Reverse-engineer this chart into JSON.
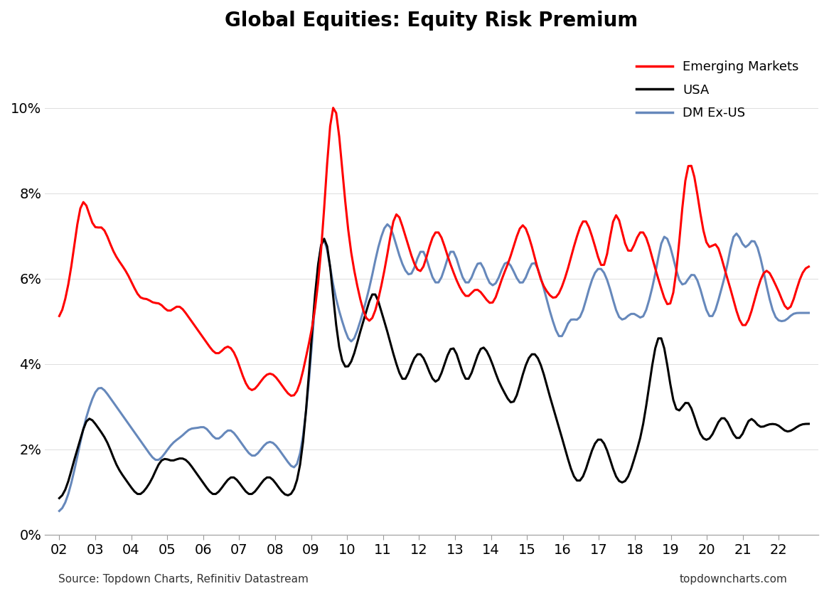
{
  "title": "Global Equities: Equity Risk Premium",
  "source_left": "Source: Topdown Charts, Refinitiv Datastream",
  "source_right": "topdowncharts.com",
  "ylim": [
    0,
    11.5
  ],
  "yticks": [
    0,
    2,
    4,
    6,
    8,
    10
  ],
  "ytick_labels": [
    "0%",
    "2%",
    "4%",
    "6%",
    "8%",
    "10%"
  ],
  "legend": [
    {
      "label": "Emerging Markets",
      "color": "#FF0000"
    },
    {
      "label": "USA",
      "color": "#000000"
    },
    {
      "label": "DM Ex-US",
      "color": "#6688BB"
    }
  ],
  "background_color": "#FFFFFF",
  "em_data": [
    5.0,
    5.2,
    5.5,
    5.8,
    6.2,
    6.8,
    7.3,
    7.9,
    8.0,
    7.8,
    7.5,
    7.2,
    7.1,
    7.2,
    7.3,
    7.2,
    7.0,
    6.8,
    6.6,
    6.5,
    6.4,
    6.3,
    6.2,
    6.1,
    5.9,
    5.8,
    5.6,
    5.5,
    5.5,
    5.6,
    5.5,
    5.4,
    5.4,
    5.5,
    5.4,
    5.3,
    5.2,
    5.2,
    5.3,
    5.4,
    5.4,
    5.3,
    5.2,
    5.1,
    5.0,
    4.9,
    4.8,
    4.7,
    4.6,
    4.5,
    4.4,
    4.3,
    4.2,
    4.2,
    4.3,
    4.4,
    4.5,
    4.4,
    4.3,
    4.2,
    3.9,
    3.7,
    3.5,
    3.4,
    3.3,
    3.4,
    3.5,
    3.6,
    3.7,
    3.8,
    3.8,
    3.8,
    3.7,
    3.6,
    3.5,
    3.4,
    3.3,
    3.2,
    3.2,
    3.3,
    3.5,
    3.8,
    4.2,
    4.5,
    4.8,
    5.2,
    5.8,
    6.5,
    7.5,
    8.8,
    10.0,
    10.5,
    10.2,
    9.5,
    8.5,
    7.8,
    7.0,
    6.5,
    6.2,
    5.8,
    5.5,
    5.2,
    5.0,
    4.9,
    5.0,
    5.2,
    5.5,
    5.8,
    6.2,
    6.5,
    7.0,
    7.5,
    7.8,
    7.5,
    7.2,
    7.0,
    6.8,
    6.5,
    6.3,
    6.2,
    6.0,
    6.2,
    6.5,
    6.8,
    7.0,
    7.2,
    7.2,
    7.0,
    6.8,
    6.5,
    6.3,
    6.2,
    5.9,
    5.8,
    5.7,
    5.5,
    5.5,
    5.7,
    5.8,
    5.8,
    5.7,
    5.6,
    5.5,
    5.4,
    5.3,
    5.5,
    5.8,
    6.0,
    6.2,
    6.3,
    6.5,
    6.8,
    7.0,
    7.2,
    7.5,
    7.2,
    7.0,
    6.8,
    6.5,
    6.2,
    5.9,
    5.8,
    5.7,
    5.6,
    5.5,
    5.5,
    5.6,
    5.8,
    6.0,
    6.2,
    6.5,
    6.8,
    7.0,
    7.2,
    7.5,
    7.5,
    7.2,
    7.0,
    6.8,
    6.5,
    6.2,
    6.0,
    6.5,
    7.0,
    7.5,
    7.8,
    7.5,
    7.0,
    6.8,
    6.5,
    6.5,
    6.8,
    7.0,
    7.2,
    7.2,
    7.0,
    6.8,
    6.5,
    6.2,
    6.0,
    5.8,
    5.5,
    5.3,
    5.2,
    5.5,
    6.0,
    6.8,
    7.8,
    8.5,
    9.0,
    8.8,
    8.5,
    8.0,
    7.5,
    7.0,
    6.8,
    6.5,
    6.8,
    7.0,
    6.8,
    6.5,
    6.2,
    6.0,
    5.8,
    5.5,
    5.2,
    5.0,
    4.8,
    4.8,
    5.0,
    5.2,
    5.5,
    5.8,
    6.0,
    6.2,
    6.3,
    6.2,
    6.0,
    5.8,
    5.8,
    5.5,
    5.3,
    5.2,
    5.2,
    5.5,
    5.8,
    6.0,
    6.2,
    6.3,
    6.3
  ],
  "usa_data": [
    0.8,
    0.9,
    1.0,
    1.2,
    1.5,
    1.8,
    2.0,
    2.2,
    2.5,
    2.8,
    2.8,
    2.7,
    2.6,
    2.5,
    2.4,
    2.3,
    2.2,
    2.0,
    1.8,
    1.6,
    1.5,
    1.4,
    1.3,
    1.2,
    1.1,
    1.0,
    0.9,
    0.9,
    1.0,
    1.1,
    1.2,
    1.3,
    1.5,
    1.7,
    1.8,
    1.8,
    1.8,
    1.7,
    1.7,
    1.8,
    1.8,
    1.8,
    1.8,
    1.7,
    1.6,
    1.5,
    1.4,
    1.3,
    1.2,
    1.1,
    1.0,
    0.9,
    0.9,
    1.0,
    1.1,
    1.2,
    1.3,
    1.4,
    1.4,
    1.3,
    1.2,
    1.1,
    1.0,
    0.9,
    0.9,
    1.0,
    1.1,
    1.2,
    1.3,
    1.4,
    1.4,
    1.3,
    1.2,
    1.1,
    1.0,
    0.9,
    0.9,
    0.9,
    1.0,
    1.2,
    1.5,
    2.0,
    2.8,
    3.8,
    4.8,
    5.8,
    6.5,
    7.0,
    7.2,
    7.0,
    6.5,
    5.5,
    4.8,
    4.2,
    4.0,
    3.8,
    3.9,
    4.0,
    4.2,
    4.5,
    4.8,
    5.0,
    5.2,
    5.5,
    5.8,
    5.8,
    5.5,
    5.2,
    5.0,
    4.8,
    4.5,
    4.2,
    4.0,
    3.8,
    3.5,
    3.5,
    3.8,
    4.0,
    4.2,
    4.3,
    4.3,
    4.2,
    4.0,
    3.8,
    3.6,
    3.5,
    3.5,
    3.8,
    4.0,
    4.2,
    4.5,
    4.5,
    4.3,
    4.0,
    3.8,
    3.5,
    3.5,
    3.8,
    4.0,
    4.2,
    4.5,
    4.5,
    4.3,
    4.2,
    4.0,
    3.8,
    3.5,
    3.5,
    3.3,
    3.2,
    3.0,
    3.0,
    3.2,
    3.5,
    3.8,
    4.0,
    4.2,
    4.3,
    4.3,
    4.2,
    4.0,
    3.8,
    3.5,
    3.2,
    3.0,
    2.8,
    2.5,
    2.3,
    2.0,
    1.8,
    1.5,
    1.3,
    1.2,
    1.2,
    1.3,
    1.5,
    1.8,
    2.0,
    2.2,
    2.3,
    2.3,
    2.2,
    2.0,
    1.8,
    1.5,
    1.3,
    1.2,
    1.2,
    1.2,
    1.3,
    1.5,
    1.8,
    2.0,
    2.2,
    2.5,
    3.0,
    3.5,
    4.0,
    4.5,
    4.8,
    4.8,
    4.5,
    4.0,
    3.5,
    3.0,
    2.8,
    2.8,
    3.0,
    3.2,
    3.2,
    3.0,
    2.8,
    2.5,
    2.3,
    2.2,
    2.2,
    2.2,
    2.3,
    2.5,
    2.7,
    2.8,
    2.8,
    2.7,
    2.5,
    2.3,
    2.2,
    2.2,
    2.3,
    2.5,
    2.8,
    2.8,
    2.7,
    2.5,
    2.5,
    2.5,
    2.6,
    2.6,
    2.6,
    2.6,
    2.6,
    2.5,
    2.4,
    2.4,
    2.4,
    2.5,
    2.5,
    2.6,
    2.6,
    2.6,
    2.6
  ],
  "dm_data": [
    0.5,
    0.6,
    0.7,
    0.9,
    1.2,
    1.5,
    1.8,
    2.2,
    2.5,
    2.8,
    3.0,
    3.2,
    3.4,
    3.5,
    3.5,
    3.4,
    3.3,
    3.2,
    3.1,
    3.0,
    2.9,
    2.8,
    2.7,
    2.6,
    2.5,
    2.4,
    2.3,
    2.2,
    2.1,
    2.0,
    1.9,
    1.8,
    1.7,
    1.7,
    1.8,
    1.9,
    2.0,
    2.1,
    2.2,
    2.2,
    2.3,
    2.3,
    2.4,
    2.5,
    2.5,
    2.5,
    2.5,
    2.5,
    2.6,
    2.5,
    2.4,
    2.3,
    2.2,
    2.2,
    2.3,
    2.4,
    2.5,
    2.5,
    2.4,
    2.3,
    2.2,
    2.1,
    2.0,
    1.9,
    1.8,
    1.8,
    1.9,
    2.0,
    2.1,
    2.2,
    2.2,
    2.2,
    2.1,
    2.0,
    1.9,
    1.8,
    1.7,
    1.6,
    1.5,
    1.5,
    1.8,
    2.2,
    2.8,
    3.5,
    4.5,
    5.5,
    6.5,
    7.2,
    7.2,
    6.8,
    6.2,
    5.8,
    5.5,
    5.2,
    5.0,
    4.8,
    4.5,
    4.4,
    4.5,
    4.8,
    5.0,
    5.2,
    5.5,
    5.8,
    6.0,
    6.5,
    6.8,
    7.0,
    7.2,
    7.5,
    7.3,
    7.0,
    6.8,
    6.5,
    6.3,
    6.2,
    6.0,
    6.0,
    6.2,
    6.5,
    6.8,
    6.8,
    6.5,
    6.2,
    6.0,
    5.8,
    5.8,
    6.0,
    6.2,
    6.5,
    6.8,
    6.8,
    6.5,
    6.2,
    6.0,
    5.8,
    5.8,
    6.0,
    6.2,
    6.5,
    6.5,
    6.3,
    6.0,
    5.8,
    5.8,
    5.8,
    6.0,
    6.2,
    6.5,
    6.5,
    6.3,
    6.2,
    6.0,
    5.8,
    5.8,
    6.0,
    6.2,
    6.5,
    6.5,
    6.3,
    6.0,
    5.8,
    5.5,
    5.2,
    5.0,
    4.8,
    4.5,
    4.5,
    4.8,
    5.0,
    5.2,
    5.0,
    5.0,
    5.0,
    5.2,
    5.5,
    5.8,
    6.0,
    6.2,
    6.3,
    6.3,
    6.2,
    6.0,
    5.8,
    5.5,
    5.2,
    5.0,
    5.0,
    5.0,
    5.2,
    5.2,
    5.2,
    5.2,
    5.0,
    5.0,
    5.2,
    5.5,
    5.8,
    6.0,
    6.5,
    7.0,
    7.2,
    7.0,
    6.8,
    6.5,
    6.2,
    5.8,
    5.8,
    5.8,
    6.0,
    6.2,
    6.2,
    6.0,
    5.8,
    5.5,
    5.2,
    5.0,
    5.0,
    5.2,
    5.5,
    5.8,
    6.0,
    6.2,
    6.8,
    7.2,
    7.2,
    7.0,
    6.8,
    6.5,
    6.8,
    7.0,
    7.0,
    6.8,
    6.5,
    6.2,
    5.8,
    5.5,
    5.2,
    5.0,
    5.0,
    5.0,
    5.0,
    5.0,
    5.2,
    5.2,
    5.2,
    5.2,
    5.2,
    5.2,
    5.2
  ]
}
